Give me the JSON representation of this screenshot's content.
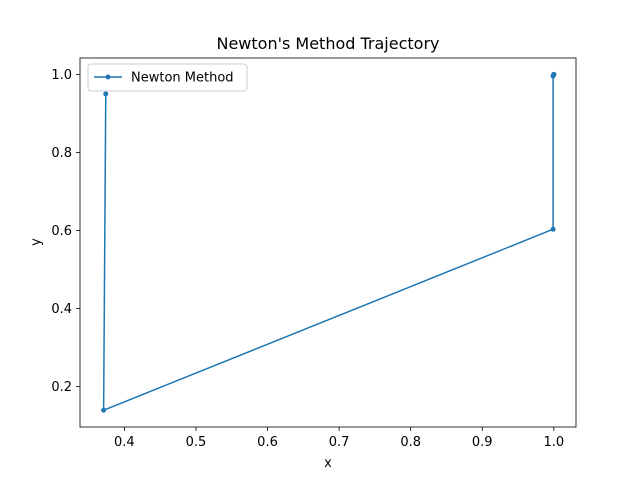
{
  "chart_data": {
    "type": "line",
    "title": "Newton's Method Trajectory",
    "xlabel": "x",
    "ylabel": "y",
    "xlim": [
      0.338,
      1.031
    ],
    "ylim": [
      0.096,
      1.042
    ],
    "xticks": [
      0.4,
      0.5,
      0.6,
      0.7,
      0.8,
      0.9,
      1.0
    ],
    "yticks": [
      0.2,
      0.4,
      0.6,
      0.8,
      1.0
    ],
    "grid": false,
    "legend_position": "upper-left",
    "series": [
      {
        "name": "Newton Method",
        "color": "#1f77b4",
        "marker": "circle",
        "x": [
          0.374,
          0.371,
          0.999,
          0.999,
          1.0,
          1.0
        ],
        "y": [
          0.95,
          0.139,
          0.603,
          0.996,
          1.0,
          1.0
        ]
      }
    ]
  }
}
